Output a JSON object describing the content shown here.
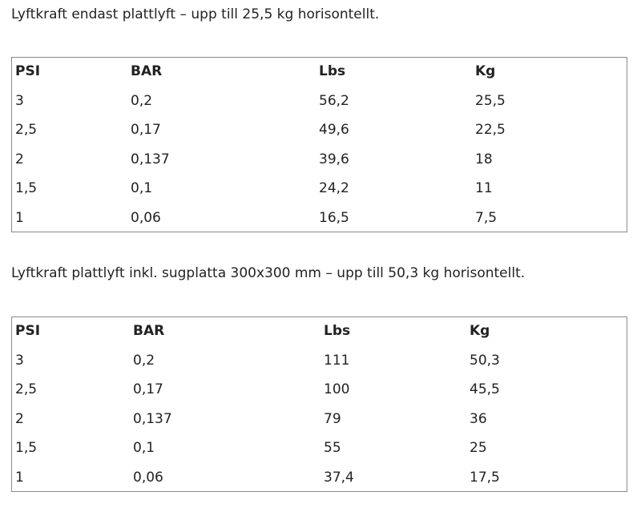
{
  "sections": [
    {
      "heading": "Lyftkraft endast plattlyft – upp till 25,5 kg horisontellt.",
      "table": {
        "header": [
          "PSI",
          "BAR",
          "Lbs",
          "Kg"
        ],
        "rows": [
          [
            "3",
            "0,2",
            "56,2",
            "25,5"
          ],
          [
            "2,5",
            "0,17",
            "49,6",
            "22,5"
          ],
          [
            "2",
            "0,137",
            "39,6",
            "18"
          ],
          [
            "1,5",
            "0,1",
            "24,2",
            "11"
          ],
          [
            "1",
            "0,06",
            "16,5",
            "7,5"
          ]
        ]
      }
    },
    {
      "heading": "Lyftkraft plattlyft inkl. sugplatta 300x300 mm – upp till 50,3 kg horisontellt.",
      "table": {
        "header": [
          "PSI",
          "BAR",
          "Lbs",
          "Kg"
        ],
        "rows": [
          [
            "3",
            "0,2",
            "111",
            "50,3"
          ],
          [
            "2,5",
            "0,17",
            "100",
            "45,5"
          ],
          [
            "2",
            "0,137",
            "79",
            "36"
          ],
          [
            "1,5",
            "0,1",
            "55",
            "25"
          ],
          [
            "1",
            "0,06",
            "37,4",
            "17,5"
          ]
        ]
      }
    }
  ]
}
